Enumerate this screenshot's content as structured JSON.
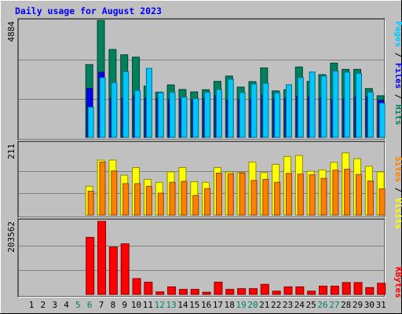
{
  "chart_data": [
    {
      "type": "bar",
      "title": "Daily usage for August 2023",
      "panel": "top",
      "categories": [
        "1",
        "2",
        "3",
        "4",
        "5",
        "6",
        "7",
        "8",
        "9",
        "10",
        "11",
        "12",
        "13",
        "14",
        "15",
        "16",
        "17",
        "18",
        "19",
        "20",
        "21",
        "22",
        "23",
        "24",
        "25",
        "26",
        "27",
        "28",
        "29",
        "30",
        "31"
      ],
      "ymax_label": "4884",
      "ymax": 4884,
      "legend": [
        "Pages",
        "Files",
        "Hits"
      ],
      "legend_separator": " / ",
      "series": [
        {
          "name": "Hits",
          "values": [
            0,
            0,
            0,
            0,
            0,
            3040,
            4884,
            3670,
            3450,
            3350,
            2140,
            1890,
            2190,
            2000,
            1900,
            1990,
            2340,
            2560,
            2100,
            2330,
            2900,
            1940,
            1990,
            2940,
            2340,
            2620,
            3100,
            2840,
            2840,
            2040,
            1740
          ]
        },
        {
          "name": "Files",
          "values": [
            0,
            0,
            0,
            0,
            0,
            2040,
            2720,
            1640,
            1640,
            1730,
            1640,
            1620,
            1590,
            1620,
            1580,
            1630,
            1750,
            1560,
            1590,
            1600,
            1770,
            1620,
            1620,
            1720,
            1700,
            1650,
            1580,
            1620,
            1700,
            1690,
            1550
          ]
        },
        {
          "name": "Pages",
          "values": [
            0,
            0,
            0,
            0,
            0,
            1260,
            2490,
            2280,
            2740,
            1960,
            2880,
            1870,
            1880,
            1680,
            1620,
            1880,
            2000,
            2420,
            1870,
            2230,
            2260,
            1860,
            2200,
            2500,
            2730,
            2560,
            2770,
            2720,
            2670,
            1890,
            1430
          ]
        }
      ],
      "colors": {
        "Hits": "#00805c",
        "Files": "#0000ff",
        "Pages": "#00c8ff"
      }
    },
    {
      "type": "bar",
      "panel": "middle",
      "ymax_label": "211",
      "ymax": 211,
      "legend": [
        "Sites",
        "Visits"
      ],
      "legend_separator": " / ",
      "series": [
        {
          "name": "Visits",
          "values": [
            0,
            0,
            0,
            0,
            0,
            88,
            168,
            168,
            122,
            145,
            109,
            100,
            132,
            145,
            102,
            100,
            145,
            132,
            130,
            162,
            130,
            155,
            179,
            182,
            134,
            138,
            161,
            190,
            172,
            149,
            132
          ]
        },
        {
          "name": "Sites",
          "values": [
            0,
            0,
            0,
            0,
            0,
            73,
            162,
            135,
            96,
            96,
            88,
            67,
            100,
            103,
            60,
            81,
            128,
            126,
            129,
            106,
            109,
            100,
            127,
            125,
            123,
            112,
            137,
            140,
            124,
            104,
            80
          ]
        }
      ],
      "colors": {
        "Visits": "#ffff00",
        "Sites": "#ff8000"
      }
    },
    {
      "type": "bar",
      "panel": "bottom",
      "ymax_label": "203562",
      "ymax": 203562,
      "legend": [
        "KBytes"
      ],
      "series": [
        {
          "name": "KBytes",
          "values": [
            0,
            0,
            0,
            0,
            0,
            159000,
            203562,
            132000,
            141000,
            44000,
            34000,
            7000,
            21000,
            14000,
            14000,
            6000,
            34000,
            14000,
            16000,
            16000,
            28000,
            9000,
            21000,
            21000,
            9000,
            23000,
            23000,
            33000,
            33000,
            19000,
            31000
          ]
        }
      ],
      "colors": {
        "KBytes": "#ff0000"
      }
    }
  ],
  "xaxis": {
    "labels": [
      "1",
      "2",
      "3",
      "4",
      "5",
      "6",
      "7",
      "8",
      "9",
      "10",
      "11",
      "12",
      "13",
      "14",
      "15",
      "16",
      "17",
      "18",
      "19",
      "20",
      "21",
      "22",
      "23",
      "24",
      "25",
      "26",
      "27",
      "28",
      "29",
      "30",
      "31"
    ],
    "weekend_days": [
      "5",
      "6",
      "12",
      "13",
      "19",
      "20",
      "26",
      "27"
    ],
    "weekday_color": "#000000",
    "weekend_color": "#008060"
  },
  "colors": {
    "background": "#c0c0c0",
    "title": "#0000ff",
    "grid": "#808080",
    "border_light": "#ffffff",
    "border_dark": "#000000"
  }
}
